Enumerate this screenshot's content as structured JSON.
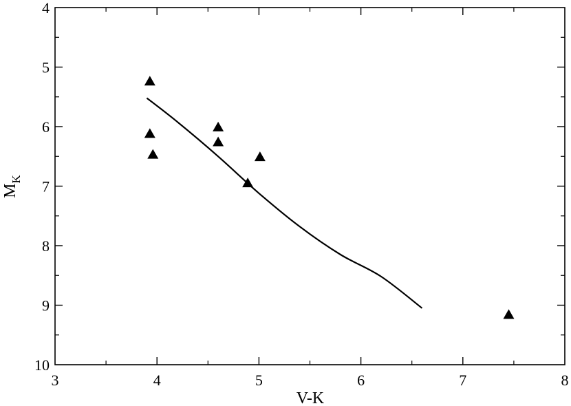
{
  "chart_data": {
    "type": "scatter",
    "xlabel": "V-K",
    "ylabel": {
      "main": "M",
      "sub": "K"
    },
    "xlim": [
      3,
      8
    ],
    "ylim": [
      10,
      4
    ],
    "y_inverted": true,
    "x_ticks": [
      "3",
      "4",
      "5",
      "6",
      "7",
      "8"
    ],
    "y_ticks": [
      "4",
      "5",
      "6",
      "7",
      "8",
      "9",
      "10"
    ],
    "x_minor_step": 0.5,
    "y_minor_step": 0.5,
    "grid": false,
    "colors": {
      "axes": "#000000",
      "marker": "#000000",
      "line": "#000000"
    },
    "series": [
      {
        "type": "scatter",
        "marker": "triangle",
        "points": [
          {
            "x": 3.93,
            "y": 5.24
          },
          {
            "x": 3.93,
            "y": 6.12
          },
          {
            "x": 3.96,
            "y": 6.47
          },
          {
            "x": 4.6,
            "y": 6.01
          },
          {
            "x": 4.6,
            "y": 6.26
          },
          {
            "x": 4.89,
            "y": 6.95
          },
          {
            "x": 5.01,
            "y": 6.51
          },
          {
            "x": 7.45,
            "y": 9.16
          }
        ]
      },
      {
        "type": "line",
        "points": [
          {
            "x": 3.9,
            "y": 5.52
          },
          {
            "x": 4.2,
            "y": 5.92
          },
          {
            "x": 4.6,
            "y": 6.5
          },
          {
            "x": 5.0,
            "y": 7.12
          },
          {
            "x": 5.4,
            "y": 7.68
          },
          {
            "x": 5.8,
            "y": 8.15
          },
          {
            "x": 6.2,
            "y": 8.52
          },
          {
            "x": 6.6,
            "y": 9.05
          }
        ]
      }
    ]
  }
}
